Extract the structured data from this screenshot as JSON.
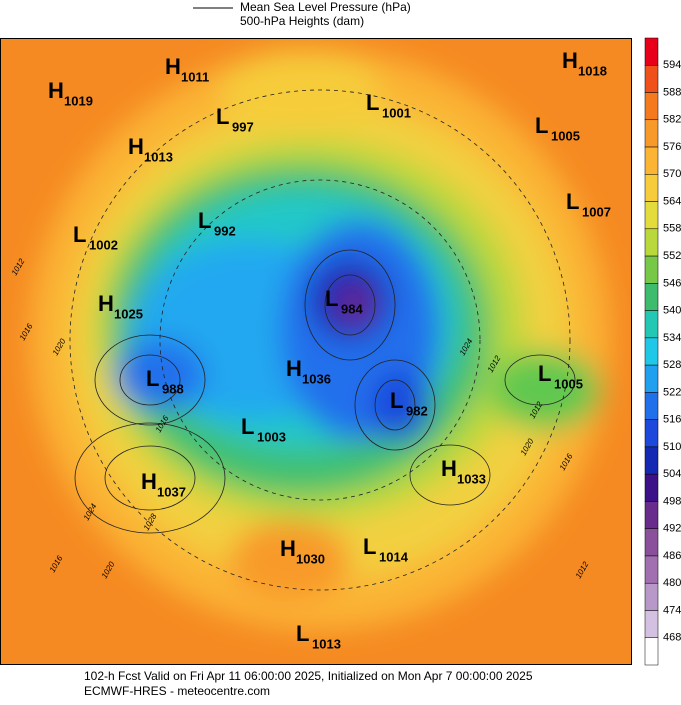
{
  "header": {
    "legend": [
      "Mean Sea Level Pressure (hPa)",
      "500-hPa Heights (dam)"
    ]
  },
  "colorbar": {
    "ticks": [
      594,
      588,
      582,
      576,
      570,
      564,
      558,
      552,
      546,
      540,
      534,
      528,
      522,
      516,
      510,
      504,
      498,
      492,
      486,
      480,
      474,
      468
    ],
    "colors": [
      "#e8001a",
      "#f0501a",
      "#f57a1e",
      "#f89a2a",
      "#fbb434",
      "#f6cc3a",
      "#e4dc3c",
      "#b8d83c",
      "#78c848",
      "#3cbc6c",
      "#22c8b4",
      "#20c8e8",
      "#22a0f0",
      "#2070ec",
      "#1c48dc",
      "#1428b4",
      "#3c1088",
      "#6a2c8c",
      "#8a509c",
      "#a070b0",
      "#b898c8",
      "#d4c0e0",
      "#ffffff"
    ]
  },
  "centers": [
    {
      "kind": "H",
      "value": 1011
    },
    {
      "kind": "H",
      "value": 1018
    },
    {
      "kind": "H",
      "value": 1019
    },
    {
      "kind": "L",
      "value": 997
    },
    {
      "kind": "L",
      "value": 1001
    },
    {
      "kind": "L",
      "value": 1005
    },
    {
      "kind": "H",
      "value": 1013
    },
    {
      "kind": "L",
      "value": 1007
    },
    {
      "kind": "L",
      "value": 992
    },
    {
      "kind": "L",
      "value": 1002
    },
    {
      "kind": "H",
      "value": 1025
    },
    {
      "kind": "L",
      "value": 984
    },
    {
      "kind": "L",
      "value": 1005
    },
    {
      "kind": "L",
      "value": 988
    },
    {
      "kind": "H",
      "value": 1036
    },
    {
      "kind": "L",
      "value": 982
    },
    {
      "kind": "L",
      "value": 1003
    },
    {
      "kind": "H",
      "value": 1033
    },
    {
      "kind": "H",
      "value": 1037
    },
    {
      "kind": "H",
      "value": 1030
    },
    {
      "kind": "L",
      "value": 1014
    },
    {
      "kind": "L",
      "value": 1013
    }
  ],
  "isobar_labels": [
    1012,
    1016,
    1020,
    1016,
    1024,
    1028,
    1020,
    1016,
    1012,
    1012,
    1020,
    1016,
    1012,
    1024
  ],
  "footer": [
    "102-h Fcst Valid on Fri Apr 11 06:00:00 2025, Initialized on Mon Apr  7 00:00:00 2025",
    "ECMWF-HRES  - meteocentre.com"
  ]
}
